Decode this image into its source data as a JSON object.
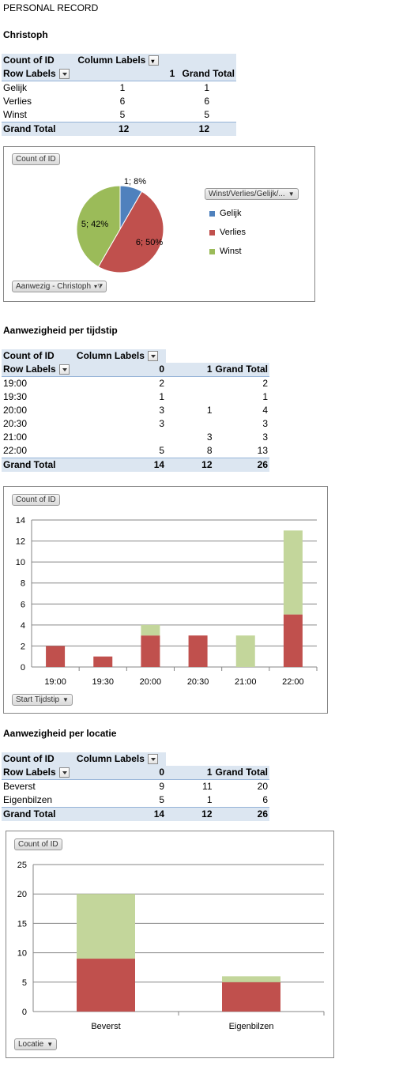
{
  "page_title": "PERSONAL RECORD",
  "section1": {
    "name": "Christoph",
    "pivot": {
      "corner": "Count of ID",
      "col_labels": "Column Labels",
      "row_labels": "Row Labels",
      "col_val": "1",
      "grand_total": "Grand Total",
      "rows": [
        {
          "label": "Gelijk",
          "v": "1",
          "t": "1"
        },
        {
          "label": "Verlies",
          "v": "6",
          "t": "6"
        },
        {
          "label": "Winst",
          "v": "5",
          "t": "5"
        }
      ],
      "total": {
        "label": "Grand Total",
        "v": "12",
        "t": "12"
      }
    },
    "chart": {
      "field_button": "Count of ID",
      "legend_button": "Winst/Verlies/Gelijk/...",
      "filter_button": "Aanwezig - Christoph",
      "slice_labels": [
        "1; 8%",
        "6; 50%",
        "5; 42%"
      ],
      "legend": [
        "Gelijk",
        "Verlies",
        "Winst"
      ],
      "colors": [
        "#4f81bd",
        "#c0504d",
        "#9bbb59"
      ]
    }
  },
  "section2": {
    "name": "Aanwezigheid per tijdstip",
    "pivot": {
      "corner": "Count of ID",
      "col_labels": "Column Labels",
      "row_labels": "Row Labels",
      "c0": "0",
      "c1": "1",
      "grand_total": "Grand Total",
      "rows": [
        {
          "label": "19:00",
          "a": "2",
          "b": "",
          "t": "2"
        },
        {
          "label": "19:30",
          "a": "1",
          "b": "",
          "t": "1"
        },
        {
          "label": "20:00",
          "a": "3",
          "b": "1",
          "t": "4"
        },
        {
          "label": "20:30",
          "a": "3",
          "b": "",
          "t": "3"
        },
        {
          "label": "21:00",
          "a": "",
          "b": "3",
          "t": "3"
        },
        {
          "label": "22:00",
          "a": "5",
          "b": "8",
          "t": "13"
        }
      ],
      "total": {
        "label": "Grand Total",
        "a": "14",
        "b": "12",
        "t": "26"
      }
    },
    "chart": {
      "field_button": "Count of ID",
      "axis_button": "Start Tijdstip"
    }
  },
  "section3": {
    "name": "Aanwezigheid per locatie",
    "pivot": {
      "corner": "Count of ID",
      "col_labels": "Column Labels",
      "row_labels": "Row Labels",
      "c0": "0",
      "c1": "1",
      "grand_total": "Grand Total",
      "rows": [
        {
          "label": "Beverst",
          "a": "9",
          "b": "11",
          "t": "20"
        },
        {
          "label": "Eigenbilzen",
          "a": "5",
          "b": "1",
          "t": "6"
        }
      ],
      "total": {
        "label": "Grand Total",
        "a": "14",
        "b": "12",
        "t": "26"
      }
    },
    "chart": {
      "field_button": "Count of ID",
      "axis_button": "Locatie"
    }
  },
  "chart_data": [
    {
      "type": "pie",
      "categories": [
        "Gelijk",
        "Verlies",
        "Winst"
      ],
      "values": [
        1,
        6,
        5
      ],
      "data_labels": [
        "1; 8%",
        "6; 50%",
        "5; 42%"
      ],
      "legend_placement": "right"
    },
    {
      "type": "bar",
      "stacked": true,
      "categories": [
        "19:00",
        "19:30",
        "20:00",
        "20:30",
        "21:00",
        "22:00"
      ],
      "series": [
        {
          "name": "0",
          "values": [
            2,
            1,
            3,
            3,
            0,
            5
          ],
          "color": "#c0504d"
        },
        {
          "name": "1",
          "values": [
            0,
            0,
            1,
            0,
            3,
            8
          ],
          "color": "#c3d69b"
        }
      ],
      "ylim": [
        0,
        14
      ],
      "yticks": [
        0,
        2,
        4,
        6,
        8,
        10,
        12,
        14
      ],
      "grid": true
    },
    {
      "type": "bar",
      "stacked": true,
      "categories": [
        "Beverst",
        "Eigenbilzen"
      ],
      "series": [
        {
          "name": "0",
          "values": [
            9,
            5
          ],
          "color": "#c0504d"
        },
        {
          "name": "1",
          "values": [
            11,
            1
          ],
          "color": "#c3d69b"
        }
      ],
      "ylim": [
        0,
        25
      ],
      "yticks": [
        0,
        5,
        10,
        15,
        20,
        25
      ],
      "grid": true
    }
  ]
}
